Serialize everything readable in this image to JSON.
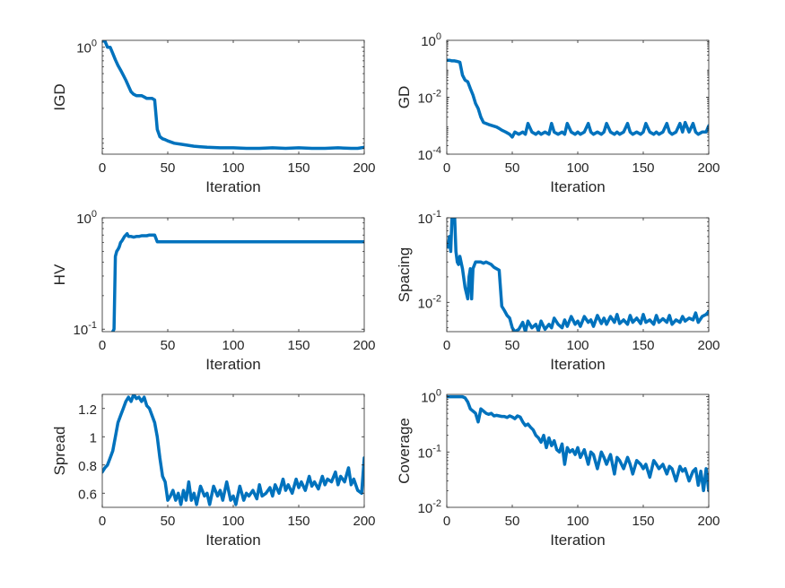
{
  "figure": {
    "background": "#ffffff",
    "line_color": "#0072BD"
  },
  "chart_data": [
    {
      "type": "line",
      "xlabel": "Iteration",
      "ylabel": "IGD",
      "xlim": [
        0,
        200
      ],
      "yscale": "log",
      "ylim": [
        0.06,
        1.2
      ],
      "xticks": [
        0,
        50,
        100,
        150,
        200
      ],
      "xtick_labels": [
        "0",
        "50",
        "100",
        "150",
        "200"
      ],
      "yticks": [
        1
      ],
      "ytick_labels": [
        "10^0"
      ],
      "series": [
        {
          "x": [
            0,
            2,
            4,
            6,
            8,
            10,
            12,
            14,
            16,
            18,
            20,
            22,
            24,
            26,
            28,
            30,
            32,
            34,
            36,
            38,
            40,
            42,
            44,
            46,
            48,
            50,
            55,
            60,
            65,
            70,
            75,
            80,
            90,
            100,
            110,
            120,
            130,
            140,
            150,
            160,
            170,
            180,
            190,
            195,
            200
          ],
          "y": [
            1.18,
            1.18,
            1.0,
            1.0,
            0.85,
            0.72,
            0.62,
            0.55,
            0.48,
            0.42,
            0.36,
            0.31,
            0.29,
            0.28,
            0.28,
            0.28,
            0.27,
            0.26,
            0.26,
            0.26,
            0.25,
            0.115,
            0.095,
            0.09,
            0.088,
            0.085,
            0.08,
            0.078,
            0.076,
            0.074,
            0.073,
            0.072,
            0.071,
            0.071,
            0.07,
            0.07,
            0.071,
            0.07,
            0.071,
            0.07,
            0.07,
            0.071,
            0.07,
            0.07,
            0.072
          ]
        }
      ]
    },
    {
      "type": "line",
      "xlabel": "Iteration",
      "ylabel": "GD",
      "xlim": [
        0,
        200
      ],
      "yscale": "log",
      "ylim": [
        0.0001,
        1
      ],
      "xticks": [
        0,
        50,
        100,
        150,
        200
      ],
      "xtick_labels": [
        "0",
        "50",
        "100",
        "150",
        "200"
      ],
      "yticks": [
        0.0001,
        0.01,
        1
      ],
      "ytick_labels": [
        "10^-4",
        "10^-2",
        "10^0"
      ],
      "series": [
        {
          "x": [
            0,
            2,
            4,
            6,
            8,
            10,
            12,
            14,
            16,
            18,
            20,
            22,
            24,
            26,
            28,
            30,
            32,
            35,
            38,
            40,
            42,
            45,
            48,
            50,
            52,
            55,
            58,
            60,
            62,
            65,
            68,
            70,
            72,
            75,
            78,
            80,
            82,
            85,
            88,
            90,
            92,
            95,
            98,
            100,
            102,
            105,
            108,
            110,
            112,
            115,
            118,
            120,
            122,
            125,
            128,
            130,
            132,
            135,
            138,
            140,
            142,
            145,
            148,
            150,
            152,
            155,
            158,
            160,
            162,
            165,
            168,
            170,
            172,
            175,
            178,
            180,
            182,
            185,
            188,
            190,
            192,
            195,
            198,
            200
          ],
          "y": [
            0.2,
            0.2,
            0.19,
            0.19,
            0.18,
            0.17,
            0.06,
            0.04,
            0.035,
            0.02,
            0.012,
            0.006,
            0.004,
            0.002,
            0.0013,
            0.0012,
            0.0011,
            0.001,
            0.0009,
            0.0008,
            0.0007,
            0.0006,
            0.0005,
            0.0004,
            0.0006,
            0.0005,
            0.0006,
            0.0005,
            0.0012,
            0.0006,
            0.0005,
            0.0006,
            0.0005,
            0.0006,
            0.0005,
            0.0012,
            0.0006,
            0.0005,
            0.0006,
            0.0005,
            0.0012,
            0.0006,
            0.0005,
            0.0006,
            0.0005,
            0.0006,
            0.0012,
            0.0006,
            0.0005,
            0.0006,
            0.0005,
            0.0006,
            0.0012,
            0.0006,
            0.0005,
            0.0006,
            0.0005,
            0.0006,
            0.0012,
            0.0006,
            0.0005,
            0.0006,
            0.0005,
            0.0006,
            0.0012,
            0.0006,
            0.0005,
            0.0006,
            0.0005,
            0.0006,
            0.0012,
            0.0006,
            0.0005,
            0.0006,
            0.0012,
            0.0006,
            0.0013,
            0.0006,
            0.0012,
            0.0006,
            0.0005,
            0.0006,
            0.0006,
            0.001
          ]
        }
      ]
    },
    {
      "type": "line",
      "xlabel": "Iteration",
      "ylabel": "HV",
      "xlim": [
        0,
        200
      ],
      "yscale": "log",
      "ylim": [
        0.095,
        1
      ],
      "xticks": [
        0,
        50,
        100,
        150,
        200
      ],
      "xtick_labels": [
        "0",
        "50",
        "100",
        "150",
        "200"
      ],
      "yticks": [
        0.1,
        1
      ],
      "ytick_labels": [
        "10^-1",
        "10^0"
      ],
      "series": [
        {
          "x": [
            8,
            9,
            10,
            11,
            12,
            13,
            14,
            15,
            16,
            17,
            18,
            19,
            20,
            22,
            24,
            26,
            28,
            30,
            32,
            34,
            36,
            38,
            40,
            42,
            50,
            100,
            150,
            200
          ],
          "y": [
            0.095,
            0.1,
            0.45,
            0.5,
            0.52,
            0.55,
            0.6,
            0.62,
            0.65,
            0.68,
            0.7,
            0.72,
            0.68,
            0.68,
            0.67,
            0.68,
            0.68,
            0.69,
            0.69,
            0.69,
            0.7,
            0.7,
            0.7,
            0.61,
            0.61,
            0.61,
            0.61,
            0.61
          ]
        }
      ]
    },
    {
      "type": "line",
      "xlabel": "Iteration",
      "ylabel": "Spacing",
      "xlim": [
        0,
        200
      ],
      "yscale": "log",
      "ylim": [
        0.0045,
        0.1
      ],
      "xticks": [
        0,
        50,
        100,
        150,
        200
      ],
      "xtick_labels": [
        "0",
        "50",
        "100",
        "150",
        "200"
      ],
      "yticks": [
        0.01,
        0.1
      ],
      "ytick_labels": [
        "10^-2",
        "10^-1"
      ],
      "series": [
        {
          "x": [
            0,
            1,
            2,
            3,
            4,
            5,
            6,
            7,
            8,
            9,
            10,
            12,
            14,
            16,
            17,
            18,
            19,
            20,
            22,
            24,
            26,
            28,
            30,
            32,
            34,
            36,
            38,
            40,
            42,
            44,
            46,
            48,
            50,
            52,
            55,
            58,
            60,
            62,
            65,
            68,
            70,
            72,
            75,
            78,
            80,
            82,
            85,
            88,
            90,
            92,
            95,
            98,
            100,
            102,
            105,
            108,
            110,
            112,
            115,
            118,
            120,
            122,
            125,
            128,
            130,
            132,
            135,
            138,
            140,
            142,
            145,
            148,
            150,
            152,
            155,
            158,
            160,
            162,
            165,
            168,
            170,
            172,
            175,
            178,
            180,
            182,
            185,
            188,
            190,
            192,
            195,
            198,
            200
          ],
          "y": [
            0.05,
            0.045,
            0.06,
            0.04,
            0.1,
            0.09,
            0.1,
            0.04,
            0.03,
            0.028,
            0.035,
            0.025,
            0.015,
            0.011,
            0.02,
            0.025,
            0.011,
            0.025,
            0.03,
            0.03,
            0.03,
            0.029,
            0.03,
            0.029,
            0.028,
            0.026,
            0.025,
            0.024,
            0.009,
            0.008,
            0.007,
            0.0065,
            0.005,
            0.0045,
            0.0048,
            0.0058,
            0.0045,
            0.006,
            0.005,
            0.0055,
            0.0046,
            0.006,
            0.0048,
            0.0055,
            0.005,
            0.0065,
            0.0055,
            0.005,
            0.0062,
            0.0052,
            0.0068,
            0.0055,
            0.006,
            0.0052,
            0.0068,
            0.0058,
            0.0062,
            0.0052,
            0.007,
            0.0056,
            0.0065,
            0.0055,
            0.0068,
            0.0058,
            0.0072,
            0.0056,
            0.0062,
            0.0055,
            0.007,
            0.0058,
            0.0065,
            0.0056,
            0.0072,
            0.0058,
            0.0062,
            0.0055,
            0.007,
            0.0058,
            0.0064,
            0.0058,
            0.007,
            0.0055,
            0.0062,
            0.0058,
            0.0068,
            0.006,
            0.0065,
            0.0062,
            0.0075,
            0.0058,
            0.0068,
            0.0072,
            0.0078
          ]
        }
      ]
    },
    {
      "type": "line",
      "xlabel": "Iteration",
      "ylabel": "Spread",
      "xlim": [
        0,
        200
      ],
      "yscale": "linear",
      "ylim": [
        0.5,
        1.3
      ],
      "xticks": [
        0,
        50,
        100,
        150,
        200
      ],
      "xtick_labels": [
        "0",
        "50",
        "100",
        "150",
        "200"
      ],
      "yticks": [
        0.6,
        0.8,
        1,
        1.2
      ],
      "ytick_labels": [
        "0.6",
        "0.8",
        "1",
        "1.2"
      ],
      "series": [
        {
          "x": [
            0,
            2,
            4,
            6,
            8,
            10,
            12,
            14,
            16,
            18,
            20,
            22,
            24,
            26,
            28,
            30,
            32,
            34,
            36,
            38,
            40,
            42,
            44,
            46,
            48,
            50,
            52,
            54,
            56,
            58,
            60,
            62,
            64,
            66,
            68,
            70,
            72,
            75,
            78,
            80,
            82,
            85,
            88,
            90,
            92,
            95,
            98,
            100,
            102,
            105,
            108,
            110,
            112,
            115,
            118,
            120,
            122,
            125,
            128,
            130,
            132,
            135,
            138,
            140,
            142,
            145,
            148,
            150,
            152,
            155,
            158,
            160,
            162,
            165,
            168,
            170,
            172,
            175,
            178,
            180,
            182,
            185,
            188,
            190,
            192,
            195,
            198,
            200
          ],
          "y": [
            0.75,
            0.78,
            0.8,
            0.85,
            0.9,
            1.0,
            1.1,
            1.15,
            1.2,
            1.25,
            1.28,
            1.25,
            1.3,
            1.27,
            1.28,
            1.25,
            1.28,
            1.22,
            1.2,
            1.15,
            1.1,
            1.0,
            0.85,
            0.72,
            0.68,
            0.55,
            0.58,
            0.62,
            0.55,
            0.6,
            0.52,
            0.62,
            0.55,
            0.68,
            0.55,
            0.6,
            0.52,
            0.65,
            0.58,
            0.6,
            0.52,
            0.65,
            0.58,
            0.62,
            0.55,
            0.68,
            0.55,
            0.58,
            0.52,
            0.65,
            0.55,
            0.6,
            0.58,
            0.62,
            0.56,
            0.66,
            0.58,
            0.6,
            0.64,
            0.58,
            0.66,
            0.6,
            0.7,
            0.62,
            0.66,
            0.6,
            0.7,
            0.64,
            0.68,
            0.62,
            0.72,
            0.65,
            0.68,
            0.63,
            0.72,
            0.66,
            0.7,
            0.68,
            0.75,
            0.66,
            0.72,
            0.68,
            0.78,
            0.66,
            0.7,
            0.62,
            0.6,
            0.85
          ]
        }
      ]
    },
    {
      "type": "line",
      "xlabel": "Iteration",
      "ylabel": "Coverage",
      "xlim": [
        0,
        200
      ],
      "yscale": "log",
      "ylim": [
        0.01,
        1.1
      ],
      "xticks": [
        0,
        50,
        100,
        150,
        200
      ],
      "xtick_labels": [
        "0",
        "50",
        "100",
        "150",
        "200"
      ],
      "yticks": [
        0.01,
        0.1,
        1
      ],
      "ytick_labels": [
        "10^-2",
        "10^-1",
        "10^0"
      ],
      "series": [
        {
          "x": [
            0,
            2,
            4,
            6,
            8,
            10,
            12,
            14,
            16,
            18,
            20,
            22,
            24,
            26,
            28,
            30,
            32,
            34,
            36,
            38,
            40,
            42,
            44,
            46,
            48,
            50,
            52,
            54,
            56,
            58,
            60,
            62,
            64,
            66,
            68,
            70,
            72,
            74,
            76,
            78,
            80,
            82,
            84,
            86,
            88,
            90,
            92,
            94,
            96,
            98,
            100,
            102,
            105,
            108,
            110,
            112,
            115,
            118,
            120,
            122,
            125,
            128,
            130,
            132,
            135,
            138,
            140,
            142,
            145,
            148,
            150,
            152,
            155,
            158,
            160,
            162,
            165,
            168,
            170,
            172,
            175,
            178,
            180,
            182,
            185,
            188,
            190,
            192,
            194,
            196,
            198,
            200
          ],
          "y": [
            1.0,
            1.0,
            1.0,
            1.0,
            1.0,
            1.0,
            1.0,
            0.95,
            0.8,
            0.6,
            0.55,
            0.5,
            0.35,
            0.6,
            0.55,
            0.5,
            0.48,
            0.5,
            0.45,
            0.46,
            0.45,
            0.44,
            0.44,
            0.42,
            0.45,
            0.43,
            0.4,
            0.45,
            0.43,
            0.35,
            0.3,
            0.32,
            0.28,
            0.25,
            0.2,
            0.18,
            0.15,
            0.2,
            0.12,
            0.18,
            0.13,
            0.16,
            0.11,
            0.1,
            0.14,
            0.06,
            0.12,
            0.1,
            0.11,
            0.09,
            0.12,
            0.08,
            0.11,
            0.06,
            0.1,
            0.09,
            0.05,
            0.1,
            0.08,
            0.06,
            0.09,
            0.04,
            0.08,
            0.07,
            0.05,
            0.08,
            0.06,
            0.04,
            0.07,
            0.06,
            0.05,
            0.06,
            0.035,
            0.07,
            0.06,
            0.05,
            0.06,
            0.04,
            0.055,
            0.05,
            0.03,
            0.055,
            0.045,
            0.05,
            0.03,
            0.045,
            0.05,
            0.025,
            0.045,
            0.02,
            0.05,
            0.02
          ]
        }
      ]
    }
  ]
}
